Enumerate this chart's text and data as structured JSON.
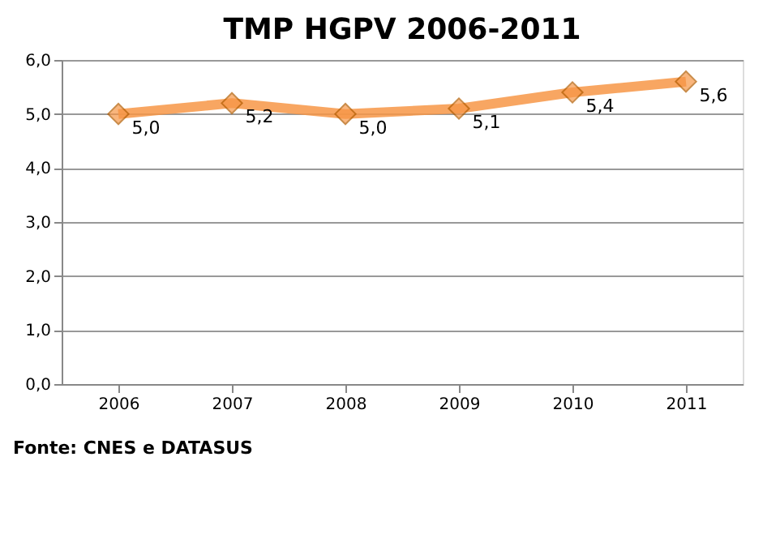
{
  "chart_data": {
    "type": "line",
    "title": "TMP HGPV 2006-2011",
    "categories": [
      "2006",
      "2007",
      "2008",
      "2009",
      "2010",
      "2011"
    ],
    "series": [
      {
        "color": "#f79646",
        "values": [
          5.0,
          5.2,
          5.0,
          5.1,
          5.4,
          5.6
        ],
        "value_labels": [
          "5,0",
          "5,2",
          "5,0",
          "5,1",
          "5,4",
          "5,6"
        ]
      }
    ],
    "ylim": [
      0,
      6
    ],
    "yticks": [
      {
        "value": 0,
        "label": "0,0"
      },
      {
        "value": 1,
        "label": "1,0"
      },
      {
        "value": 2,
        "label": "2,0"
      },
      {
        "value": 3,
        "label": "3,0"
      },
      {
        "value": 4,
        "label": "4,0"
      },
      {
        "value": 5,
        "label": "5,0"
      },
      {
        "value": 6,
        "label": "6,0"
      }
    ],
    "grid": "y",
    "marker": "diamond",
    "line_style": "solid",
    "annotations": [
      "Fonte: CNES e DATASUS"
    ]
  }
}
